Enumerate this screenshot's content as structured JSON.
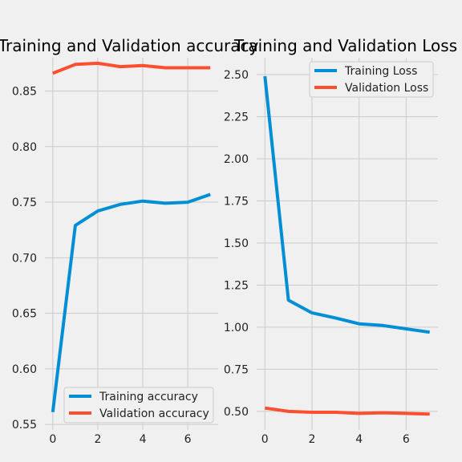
{
  "chart_data": [
    {
      "type": "line",
      "title": "Training and Validation accuracy",
      "xlabel": "",
      "ylabel": "",
      "x": [
        0,
        1,
        2,
        3,
        4,
        5,
        6,
        7
      ],
      "xlim": [
        -0.35,
        7.35
      ],
      "ylim": [
        0.545,
        0.88
      ],
      "xticks": [
        0,
        2,
        4,
        6
      ],
      "yticks": [
        0.55,
        0.6,
        0.65,
        0.7,
        0.75,
        0.8,
        0.85
      ],
      "ytick_decimals": 2,
      "grid": true,
      "legend_position": "lower right",
      "series": [
        {
          "name": "Training accuracy",
          "color": "#008fd5",
          "values": [
            0.561,
            0.729,
            0.742,
            0.748,
            0.751,
            0.749,
            0.75,
            0.757
          ]
        },
        {
          "name": "Validation accuracy",
          "color": "#fc4f30",
          "values": [
            0.866,
            0.874,
            0.875,
            0.872,
            0.873,
            0.871,
            0.871,
            0.871
          ]
        }
      ]
    },
    {
      "type": "line",
      "title": "Training and Validation Loss",
      "xlabel": "",
      "ylabel": "",
      "x": [
        0,
        1,
        2,
        3,
        4,
        5,
        6,
        7
      ],
      "xlim": [
        -0.35,
        7.35
      ],
      "ylim": [
        0.39,
        2.6
      ],
      "xticks": [
        0,
        2,
        4,
        6
      ],
      "yticks": [
        0.5,
        0.75,
        1.0,
        1.25,
        1.5,
        1.75,
        2.0,
        2.25,
        2.5
      ],
      "ytick_decimals": 2,
      "grid": true,
      "legend_position": "upper right",
      "series": [
        {
          "name": "Training Loss",
          "color": "#008fd5",
          "values": [
            2.49,
            1.16,
            1.085,
            1.055,
            1.02,
            1.01,
            0.99,
            0.97
          ]
        },
        {
          "name": "Validation Loss",
          "color": "#fc4f30",
          "values": [
            0.52,
            0.5,
            0.495,
            0.495,
            0.488,
            0.492,
            0.488,
            0.484
          ]
        }
      ]
    }
  ]
}
